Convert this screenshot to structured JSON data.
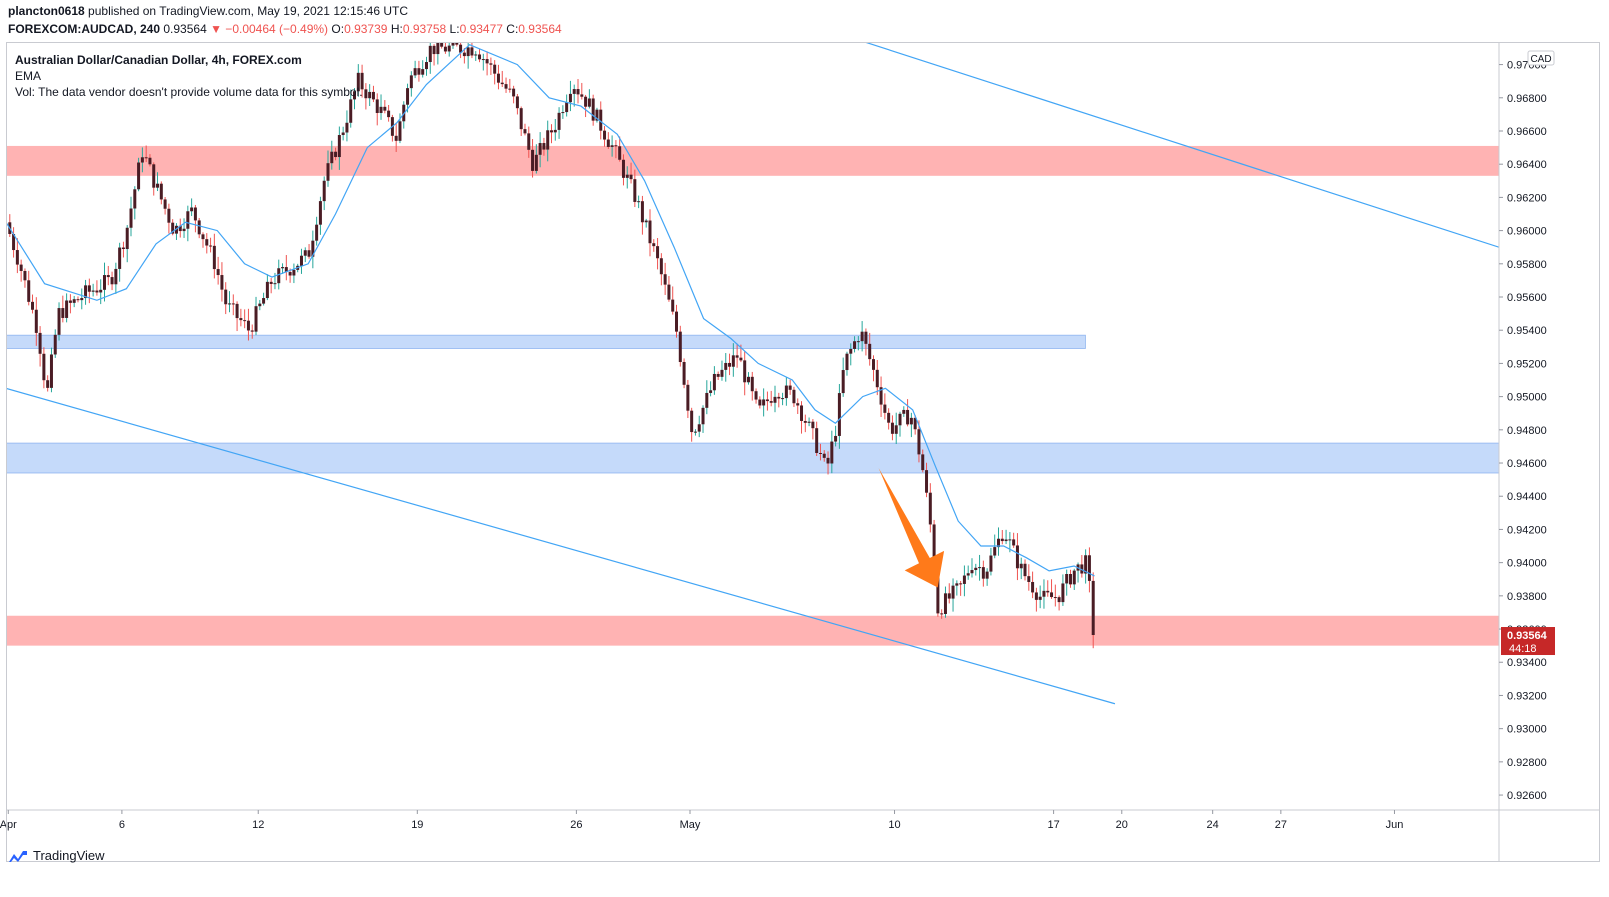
{
  "header": {
    "user": "plancton0618",
    "published": "published on TradingView.com, May 19, 2021 12:15:46 UTC",
    "symbol": "FOREXCOM:AUDCAD, 240",
    "last": "0.93564",
    "change": "▼ −0.00464 (−0.49%)",
    "o_label": "O:",
    "o_value": "0.93739",
    "h_label": "H:",
    "h_value": "0.93758",
    "l_label": "L:",
    "l_value": "0.93477",
    "c_label": "C:",
    "c_value": "0.93564"
  },
  "legend": {
    "title": "Australian Dollar/Canadian Dollar, 4h, FOREX.com",
    "indicator": "EMA",
    "volume_note": "Vol: The data vendor doesn't provide volume data for this symbol."
  },
  "footer": {
    "brand": "TradingView",
    "logo_icon": "tradingview-logo-icon"
  },
  "colors": {
    "up": "#26a69a",
    "down": "#ef5350",
    "candle": "#4a1c24",
    "ema": "#42a5f5",
    "resistance_zone": "#ffb3b3",
    "support_zone": "#c5dafa",
    "arrow": "#ff7a1a",
    "price_tag": "#c62828"
  },
  "chart_data": {
    "type": "candlestick",
    "symbol": "FOREXCOM:AUDCAD",
    "timeframe": "4h",
    "currency": "CAD",
    "last_price": 0.93564,
    "countdown": "44:18",
    "ylim": [
      0.9251,
      0.9713
    ],
    "y_ticks": [
      "0.92600",
      "0.92800",
      "0.93000",
      "0.93200",
      "0.93400",
      "0.93600",
      "0.93800",
      "0.94000",
      "0.94200",
      "0.94400",
      "0.94600",
      "0.94800",
      "0.95000",
      "0.95200",
      "0.95400",
      "0.95600",
      "0.95800",
      "0.96000",
      "0.96200",
      "0.96400",
      "0.96600",
      "0.96800",
      "0.97000"
    ],
    "x_ticks": [
      {
        "label": "Apr",
        "day": 1
      },
      {
        "label": "6",
        "day": 6
      },
      {
        "label": "12",
        "day": 12
      },
      {
        "label": "19",
        "day": 19
      },
      {
        "label": "26",
        "day": 26
      },
      {
        "label": "May",
        "day": 31
      },
      {
        "label": "10",
        "day": 40
      },
      {
        "label": "17",
        "day": 47
      },
      {
        "label": "20",
        "day": 50
      },
      {
        "label": "24",
        "day": 54
      },
      {
        "label": "27",
        "day": 57
      },
      {
        "label": "Jun",
        "day": 62
      }
    ],
    "x_range_days": [
      0.9,
      66.6
    ],
    "zones": [
      {
        "kind": "resistance",
        "from": 0.9633,
        "to": 0.9651,
        "x_start_day": 0.9,
        "x_end_day": 66.6
      },
      {
        "kind": "support",
        "from": 0.9529,
        "to": 0.9537,
        "x_start_day": 0.9,
        "x_end_day": 48.4
      },
      {
        "kind": "support",
        "from": 0.9454,
        "to": 0.9472,
        "x_start_day": 0.9,
        "x_end_day": 66.6
      },
      {
        "kind": "resistance",
        "from": 0.935,
        "to": 0.9368,
        "x_start_day": 0.9,
        "x_end_day": 66.6
      }
    ],
    "trendlines": [
      {
        "from_day": 38.6,
        "from_price": 0.9714,
        "to_day": 66.6,
        "to_price": 0.959
      },
      {
        "from_day": 0.9,
        "from_price": 0.9505,
        "to_day": 49.7,
        "to_price": 0.9315
      }
    ],
    "arrow": {
      "from_day": 39.3,
      "from_price": 0.9457,
      "to_day": 41.9,
      "to_price": 0.9385
    },
    "ohlc_path": [
      [
        0.9,
        0.9605
      ],
      [
        1.5,
        0.958
      ],
      [
        2.3,
        0.954
      ],
      [
        2.7,
        0.95
      ],
      [
        3.2,
        0.955
      ],
      [
        4.4,
        0.9562
      ],
      [
        5.5,
        0.957
      ],
      [
        6.2,
        0.96
      ],
      [
        6.9,
        0.9648
      ],
      [
        7.7,
        0.962
      ],
      [
        8.3,
        0.96
      ],
      [
        9.1,
        0.9612
      ],
      [
        10.1,
        0.958
      ],
      [
        10.6,
        0.9555
      ],
      [
        11.6,
        0.954
      ],
      [
        12.6,
        0.957
      ],
      [
        14.2,
        0.9585
      ],
      [
        14.9,
        0.963
      ],
      [
        15.7,
        0.966
      ],
      [
        16.4,
        0.969
      ],
      [
        17.5,
        0.967
      ],
      [
        18.1,
        0.9655
      ],
      [
        18.6,
        0.969
      ],
      [
        19.6,
        0.971
      ],
      [
        21.6,
        0.971
      ],
      [
        23.2,
        0.968
      ],
      [
        24.1,
        0.964
      ],
      [
        25.1,
        0.9665
      ],
      [
        25.8,
        0.969
      ],
      [
        26.6,
        0.9675
      ],
      [
        27.6,
        0.965
      ],
      [
        28.6,
        0.962
      ],
      [
        29.6,
        0.958
      ],
      [
        30.4,
        0.954
      ],
      [
        31.1,
        0.9478
      ],
      [
        32.1,
        0.951
      ],
      [
        33.1,
        0.9525
      ],
      [
        34.0,
        0.949
      ],
      [
        34.8,
        0.9505
      ],
      [
        35.6,
        0.95
      ],
      [
        36.6,
        0.947
      ],
      [
        37.0,
        0.9455
      ],
      [
        37.4,
        0.948
      ],
      [
        37.8,
        0.952
      ],
      [
        38.5,
        0.954
      ],
      [
        39.2,
        0.951
      ],
      [
        39.8,
        0.948
      ],
      [
        40.7,
        0.949
      ],
      [
        41.2,
        0.946
      ],
      [
        41.6,
        0.942
      ],
      [
        41.9,
        0.9372
      ],
      [
        42.9,
        0.9385
      ],
      [
        43.4,
        0.94
      ],
      [
        44.0,
        0.9395
      ],
      [
        44.8,
        0.942
      ],
      [
        45.6,
        0.9395
      ],
      [
        46.5,
        0.9378
      ],
      [
        47.2,
        0.938
      ],
      [
        47.9,
        0.9395
      ],
      [
        48.4,
        0.94
      ],
      [
        48.9,
        0.9356
      ]
    ],
    "ema": [
      [
        0.9,
        0.9605
      ],
      [
        2.6,
        0.9568
      ],
      [
        4.9,
        0.9558
      ],
      [
        6.2,
        0.9565
      ],
      [
        7.5,
        0.9592
      ],
      [
        8.8,
        0.9605
      ],
      [
        10.2,
        0.96
      ],
      [
        11.4,
        0.958
      ],
      [
        12.6,
        0.9572
      ],
      [
        14.2,
        0.958
      ],
      [
        15.4,
        0.961
      ],
      [
        16.8,
        0.965
      ],
      [
        18.1,
        0.9665
      ],
      [
        19.4,
        0.9688
      ],
      [
        21.3,
        0.9712
      ],
      [
        23.4,
        0.97
      ],
      [
        24.8,
        0.968
      ],
      [
        26.2,
        0.9675
      ],
      [
        27.8,
        0.9658
      ],
      [
        29.0,
        0.963
      ],
      [
        30.3,
        0.959
      ],
      [
        31.6,
        0.9547
      ],
      [
        32.8,
        0.9535
      ],
      [
        34.0,
        0.952
      ],
      [
        35.5,
        0.951
      ],
      [
        36.5,
        0.9492
      ],
      [
        37.4,
        0.9484
      ],
      [
        38.6,
        0.95
      ],
      [
        39.6,
        0.9505
      ],
      [
        40.8,
        0.9492
      ],
      [
        41.8,
        0.9458
      ],
      [
        42.8,
        0.9425
      ],
      [
        43.8,
        0.941
      ],
      [
        44.8,
        0.941
      ],
      [
        45.8,
        0.9403
      ],
      [
        46.8,
        0.9395
      ],
      [
        47.9,
        0.9398
      ],
      [
        48.8,
        0.9392
      ]
    ]
  }
}
